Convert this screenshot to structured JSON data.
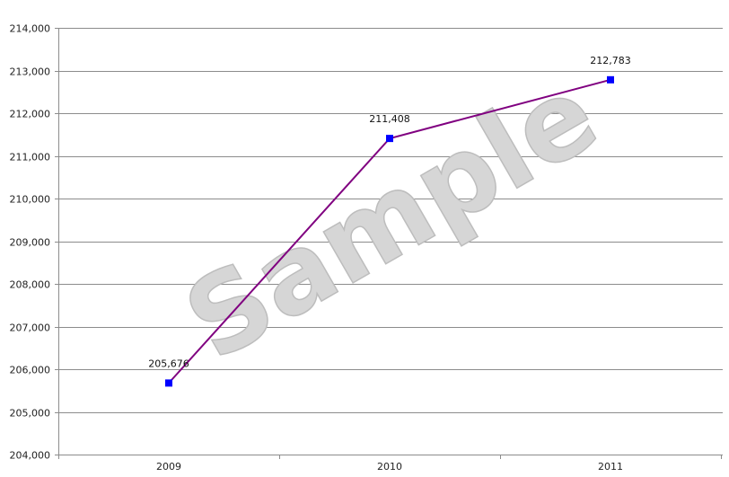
{
  "chart_data": {
    "type": "line",
    "categories": [
      "2009",
      "2010",
      "2011"
    ],
    "series": [
      {
        "values": [
          205676,
          211408,
          212783
        ],
        "color": "#800080",
        "marker_color": "#0000ff"
      }
    ],
    "data_labels": [
      "205,676",
      "211,408",
      "212,783"
    ],
    "ylim": [
      204000,
      214000
    ],
    "y_ticks": [
      204000,
      205000,
      206000,
      207000,
      208000,
      209000,
      210000,
      211000,
      212000,
      213000,
      214000
    ],
    "grid": true,
    "legend": "none",
    "title": "",
    "xlabel": "",
    "ylabel": ""
  },
  "watermark": "Sample"
}
